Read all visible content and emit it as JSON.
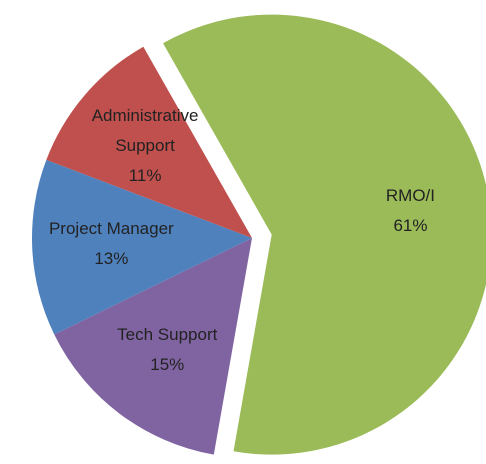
{
  "chart_data": {
    "type": "pie",
    "categories": [
      "RMO/I",
      "Tech Support",
      "Project Manager",
      "Administrative Support"
    ],
    "values": [
      61,
      15,
      13,
      11
    ],
    "value_labels": [
      "61%",
      "15%",
      "13%",
      "11%"
    ],
    "colors": [
      "#9bbb59",
      "#8064a2",
      "#4f81bd",
      "#c0504d"
    ],
    "exploded": [
      true,
      false,
      false,
      false
    ]
  }
}
